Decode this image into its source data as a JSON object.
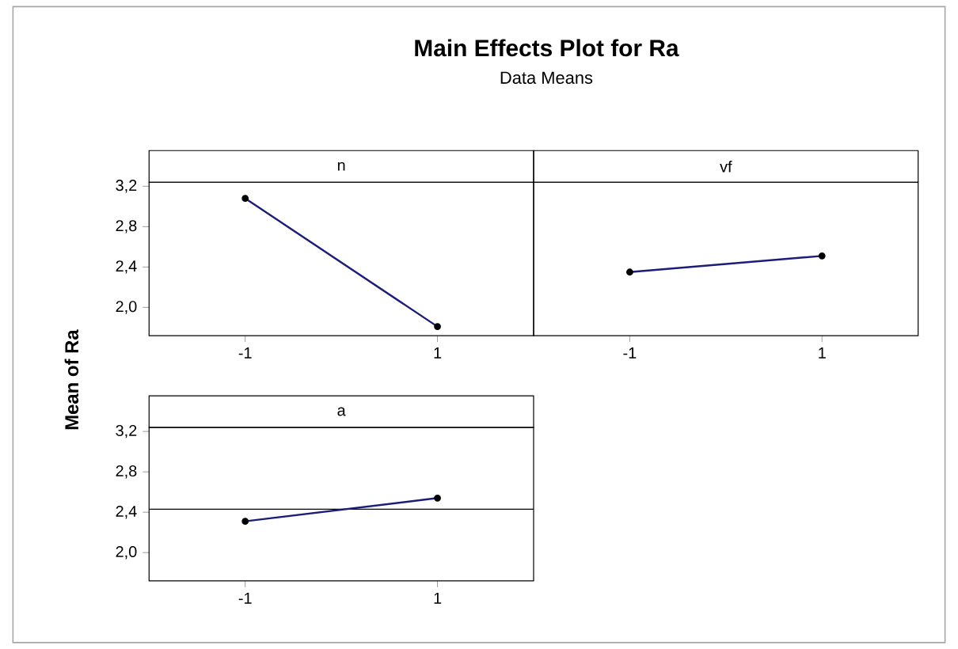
{
  "chart_data": [
    {
      "type": "line",
      "title": "n",
      "categories": [
        "-1",
        "1"
      ],
      "values": [
        3.08,
        1.81
      ],
      "color": "#1c1c7a",
      "marker": "circle",
      "line_style": "solid",
      "ylim": [
        1.72,
        3.24
      ],
      "yticks": [
        {
          "value": 2.0,
          "label": "2,0"
        },
        {
          "value": 2.4,
          "label": "2,4"
        },
        {
          "value": 2.8,
          "label": "2,8"
        },
        {
          "value": 3.2,
          "label": "3,2"
        }
      ]
    },
    {
      "type": "line",
      "title": "vf",
      "categories": [
        "-1",
        "1"
      ],
      "values": [
        2.35,
        2.51
      ],
      "color": "#1c1c7a",
      "marker": "circle",
      "line_style": "solid",
      "ylim": [
        1.72,
        3.24
      ],
      "tick_labels": "x"
    },
    {
      "type": "line",
      "title": "a",
      "categories": [
        "-1",
        "1"
      ],
      "values": [
        2.31,
        2.54
      ],
      "color": "#1c1c7a",
      "marker": "circle",
      "line_style": "solid",
      "ylim": [
        1.72,
        3.24
      ],
      "yticks": [
        {
          "value": 2.0,
          "label": "2,0"
        },
        {
          "value": 2.4,
          "label": "2,4"
        },
        {
          "value": 2.8,
          "label": "2,8"
        },
        {
          "value": 3.2,
          "label": "3,2"
        }
      ],
      "ref_lines": [
        {
          "axis": "y",
          "value": 2.43,
          "color": "#000000"
        }
      ]
    },
    {
      "type": "other",
      "title": "Main Effects Plot for Ra",
      "subtitle": "Data Means",
      "ylabel": "Mean of Ra"
    }
  ]
}
